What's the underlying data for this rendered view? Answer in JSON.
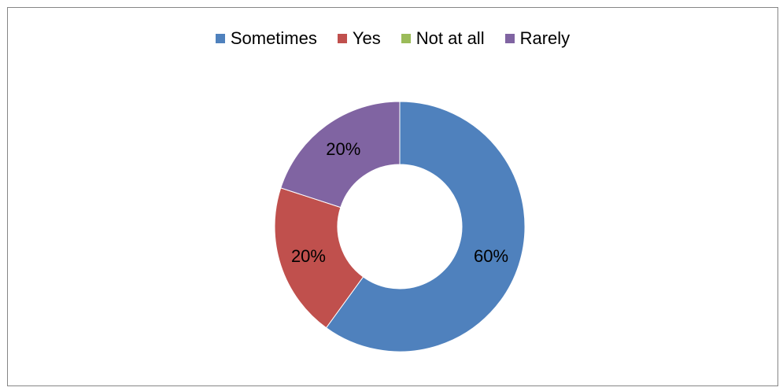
{
  "chart_data": {
    "type": "pie",
    "variant": "doughnut",
    "title": "",
    "legend_position": "top",
    "categories": [
      "Sometimes",
      "Yes",
      "Not at all",
      "Rarely"
    ],
    "values": [
      60,
      20,
      0,
      20
    ],
    "labels": [
      "60%",
      "20%",
      "",
      "20%"
    ],
    "colors": [
      "#4F81BD",
      "#C0504D",
      "#9BBB59",
      "#8064A2"
    ]
  }
}
